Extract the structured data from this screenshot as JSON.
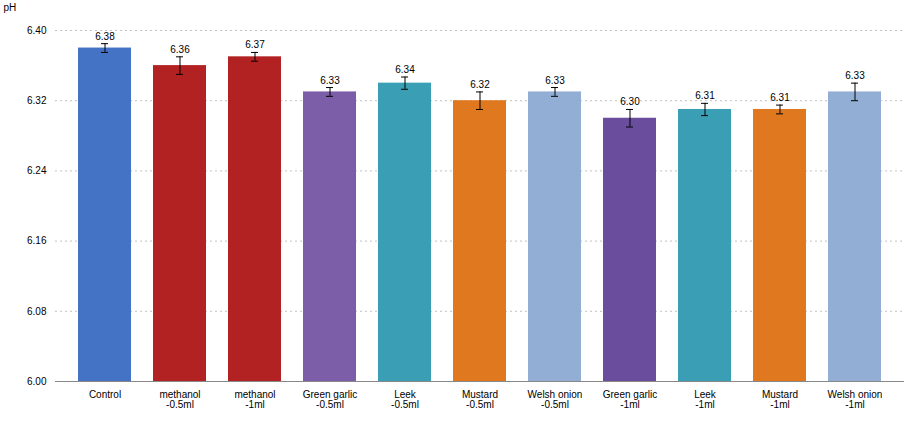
{
  "chart_data": {
    "type": "bar",
    "categories": [
      "Control",
      "methanol\n-0.5ml",
      "methanol\n-1ml",
      "Green garlic\n-0.5ml",
      "Leek\n-0.5ml",
      "Mustard\n-0.5ml",
      "Welsh onion\n-0.5ml",
      "Green garlic\n-1ml",
      "Leek\n-1ml",
      "Mustard\n-1ml",
      "Welsh onion\n-1ml"
    ],
    "values": [
      6.38,
      6.36,
      6.37,
      6.33,
      6.34,
      6.32,
      6.33,
      6.3,
      6.31,
      6.31,
      6.33
    ],
    "value_labels": [
      "6.38",
      "6.36",
      "6.37",
      "6.33",
      "6.34",
      "6.32",
      "6.33",
      "6.30",
      "6.31",
      "6.31",
      "6.33"
    ],
    "errors": [
      0.005,
      0.01,
      0.005,
      0.005,
      0.007,
      0.01,
      0.005,
      0.01,
      0.007,
      0.005,
      0.01
    ],
    "colors": [
      "#4472C4",
      "#B22222",
      "#B22222",
      "#7B5EA7",
      "#3A9EB5",
      "#E07820",
      "#92AED4",
      "#6B4D9E",
      "#3A9EB5",
      "#E07820",
      "#92AED4"
    ],
    "ylabel": "pH",
    "ylim": [
      6.0,
      6.4
    ],
    "yticks": [
      {
        "value": 6.0,
        "label": "6.00"
      },
      6.08,
      6.16,
      6.24,
      6.32,
      {
        "value": 6.4,
        "label": "6.40"
      }
    ],
    "grid": true,
    "data_labels": true
  }
}
